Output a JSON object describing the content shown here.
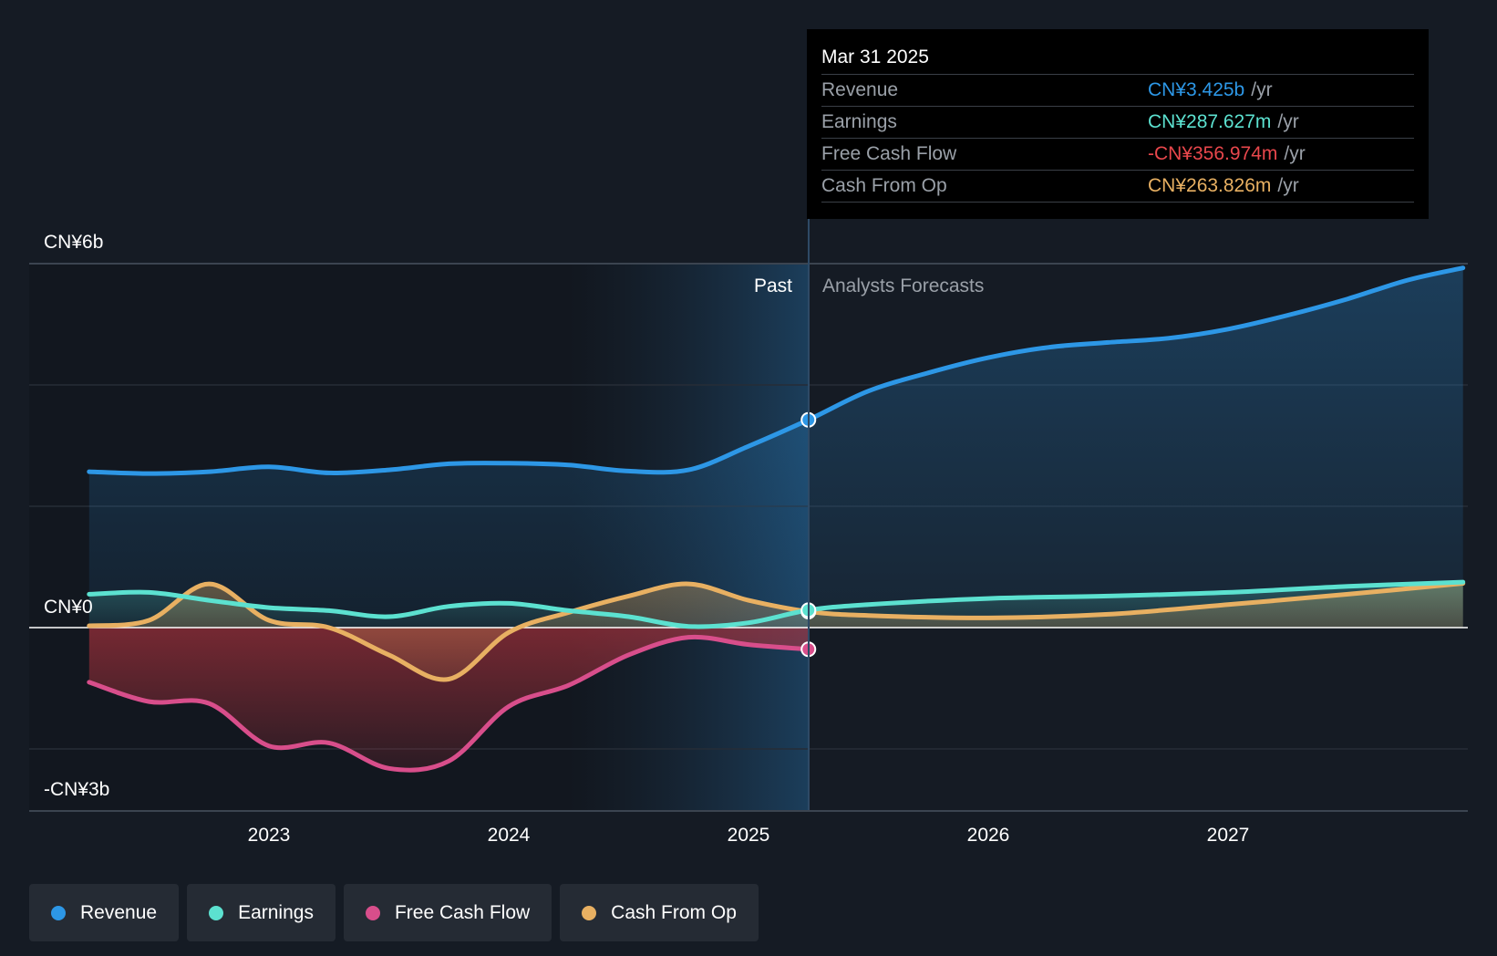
{
  "chart_data": {
    "type": "line",
    "title": "",
    "x_axis": {
      "ticks": [
        "2023",
        "2024",
        "2025",
        "2026",
        "2027"
      ]
    },
    "y_axis": {
      "labels": [
        "CN¥6b",
        "CN¥0",
        "-CN¥3b"
      ],
      "unit": "CN¥ billion",
      "range": [
        -3,
        6
      ],
      "grid": true
    },
    "regions": {
      "past_label": "Past",
      "forecast_label": "Analysts Forecasts",
      "divider_x": 2025.25
    },
    "series": [
      {
        "name": "Revenue",
        "color": "#2d97e6",
        "points": [
          [
            2022.25,
            2.57
          ],
          [
            2022.5,
            2.54
          ],
          [
            2022.75,
            2.57
          ],
          [
            2023.0,
            2.65
          ],
          [
            2023.25,
            2.55
          ],
          [
            2023.5,
            2.6
          ],
          [
            2023.75,
            2.7
          ],
          [
            2024.0,
            2.71
          ],
          [
            2024.25,
            2.68
          ],
          [
            2024.5,
            2.58
          ],
          [
            2024.75,
            2.6
          ],
          [
            2025.0,
            2.99
          ],
          [
            2025.25,
            3.425
          ],
          [
            2025.5,
            3.9
          ],
          [
            2025.75,
            4.2
          ],
          [
            2026.0,
            4.45
          ],
          [
            2026.25,
            4.62
          ],
          [
            2026.5,
            4.7
          ],
          [
            2026.75,
            4.77
          ],
          [
            2027.0,
            4.92
          ],
          [
            2027.25,
            5.15
          ],
          [
            2027.5,
            5.42
          ],
          [
            2027.75,
            5.73
          ],
          [
            2027.98,
            5.93
          ]
        ]
      },
      {
        "name": "Earnings",
        "color": "#5ce1d0",
        "points": [
          [
            2022.25,
            0.55
          ],
          [
            2022.5,
            0.58
          ],
          [
            2022.75,
            0.45
          ],
          [
            2023.0,
            0.33
          ],
          [
            2023.25,
            0.28
          ],
          [
            2023.5,
            0.18
          ],
          [
            2023.75,
            0.35
          ],
          [
            2024.0,
            0.4
          ],
          [
            2024.25,
            0.28
          ],
          [
            2024.5,
            0.18
          ],
          [
            2024.75,
            0.02
          ],
          [
            2025.0,
            0.08
          ],
          [
            2025.25,
            0.287627
          ],
          [
            2025.5,
            0.38
          ],
          [
            2026.0,
            0.48
          ],
          [
            2026.5,
            0.52
          ],
          [
            2027.0,
            0.58
          ],
          [
            2027.5,
            0.68
          ],
          [
            2027.98,
            0.75
          ]
        ]
      },
      {
        "name": "Free Cash Flow",
        "color": "#d84e8b",
        "points": [
          [
            2022.25,
            -0.9
          ],
          [
            2022.5,
            -1.22
          ],
          [
            2022.75,
            -1.25
          ],
          [
            2023.0,
            -1.95
          ],
          [
            2023.25,
            -1.9
          ],
          [
            2023.5,
            -2.32
          ],
          [
            2023.75,
            -2.2
          ],
          [
            2024.0,
            -1.3
          ],
          [
            2024.25,
            -0.95
          ],
          [
            2024.5,
            -0.45
          ],
          [
            2024.75,
            -0.16
          ],
          [
            2025.0,
            -0.28
          ],
          [
            2025.25,
            -0.356974
          ]
        ]
      },
      {
        "name": "Cash From Op",
        "color": "#e8b062",
        "points": [
          [
            2022.25,
            0.03
          ],
          [
            2022.5,
            0.12
          ],
          [
            2022.75,
            0.72
          ],
          [
            2023.0,
            0.12
          ],
          [
            2023.25,
            0.0
          ],
          [
            2023.5,
            -0.45
          ],
          [
            2023.75,
            -0.85
          ],
          [
            2024.0,
            -0.08
          ],
          [
            2024.25,
            0.25
          ],
          [
            2024.5,
            0.52
          ],
          [
            2024.75,
            0.72
          ],
          [
            2025.0,
            0.45
          ],
          [
            2025.25,
            0.263826
          ],
          [
            2025.5,
            0.2
          ],
          [
            2026.0,
            0.16
          ],
          [
            2026.5,
            0.22
          ],
          [
            2027.0,
            0.38
          ],
          [
            2027.5,
            0.55
          ],
          [
            2027.98,
            0.73
          ]
        ]
      }
    ]
  },
  "tooltip": {
    "date": "Mar 31 2025",
    "rows": [
      {
        "label": "Revenue",
        "value": "CN¥3.425b",
        "unit": "/yr",
        "color": "#2d97e6"
      },
      {
        "label": "Earnings",
        "value": "CN¥287.627m",
        "unit": "/yr",
        "color": "#5ce1d0"
      },
      {
        "label": "Free Cash Flow",
        "value": "-CN¥356.974m",
        "unit": "/yr",
        "color": "#e8474c"
      },
      {
        "label": "Cash From Op",
        "value": "CN¥263.826m",
        "unit": "/yr",
        "color": "#e8b062"
      }
    ]
  },
  "legend": [
    {
      "label": "Revenue",
      "color": "#2d97e6"
    },
    {
      "label": "Earnings",
      "color": "#5ce1d0"
    },
    {
      "label": "Free Cash Flow",
      "color": "#d84e8b"
    },
    {
      "label": "Cash From Op",
      "color": "#e8b062"
    }
  ]
}
